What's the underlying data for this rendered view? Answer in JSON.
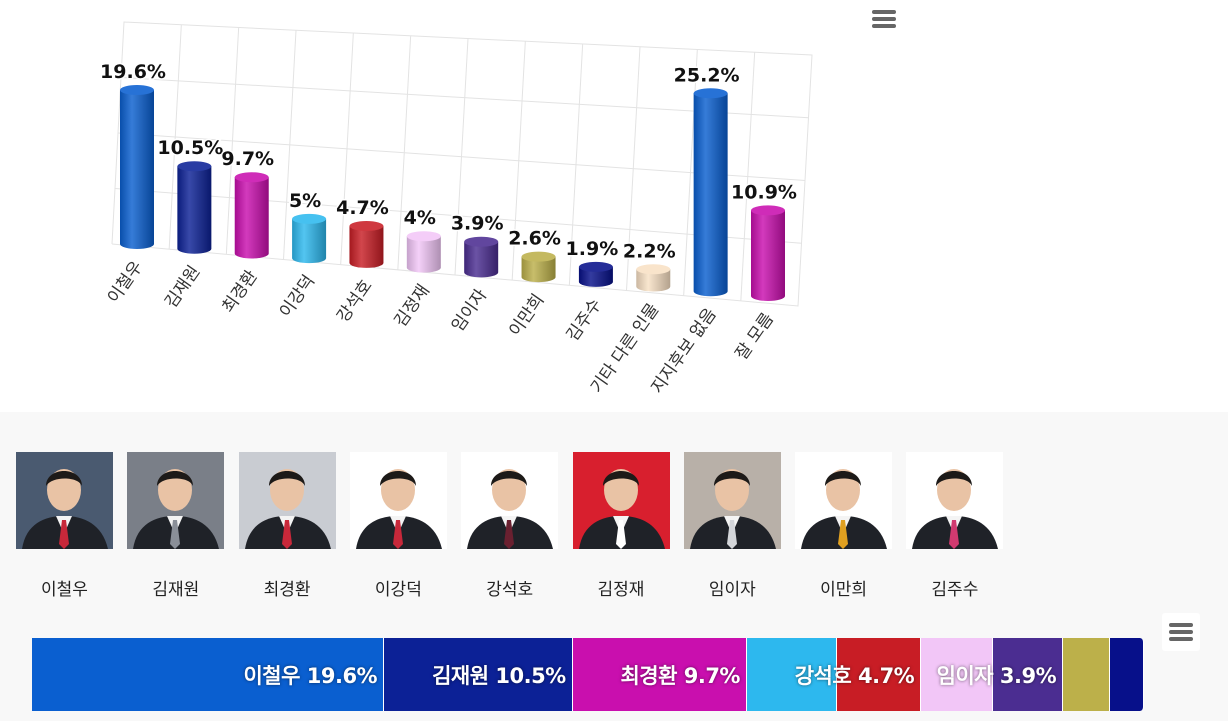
{
  "chart_data": [
    {
      "type": "bar",
      "style": "3d-cylinder",
      "categories": [
        "이철우",
        "김재원",
        "최경환",
        "이강덕",
        "강석호",
        "김정재",
        "임이자",
        "이만희",
        "김주수",
        "기타 다른 인물",
        "지지후보 없음",
        "잘 모름"
      ],
      "values": [
        19.6,
        10.5,
        9.7,
        5,
        4.7,
        4,
        3.9,
        2.6,
        1.9,
        2.2,
        25.2,
        10.9
      ],
      "data_labels": [
        "19.6%",
        "10.5%",
        "9.7%",
        "5%",
        "4.7%",
        "4%",
        "3.9%",
        "2.6%",
        "1.9%",
        "2.2%",
        "25.2%",
        "10.9%"
      ],
      "colors": [
        "#0a5fd0",
        "#0c2196",
        "#c90fae",
        "#2db8ee",
        "#c81d25",
        "#f2c6f7",
        "#4b2d91",
        "#bcb04a",
        "#07108a",
        "#f8e0c4",
        "#0a5fd0",
        "#c90fae"
      ],
      "grid": true,
      "legend": "none"
    },
    {
      "type": "bar",
      "style": "stacked-horizontal",
      "categories": [
        "이철우",
        "김재원",
        "최경환",
        "이강덕",
        "강석호",
        "김정재",
        "임이자",
        "이만희",
        "김주수"
      ],
      "values": [
        19.6,
        10.5,
        9.7,
        5,
        4.7,
        4,
        3.9,
        2.6,
        1.9
      ],
      "segment_labels": [
        "이철우 19.6%",
        "김재원 10.5%",
        "최경환 9.7%",
        "",
        "강석호 4.7%",
        "",
        "임이자 3.9%",
        "",
        ""
      ],
      "colors": [
        "#0a5fd0",
        "#0c2196",
        "#c90fae",
        "#2db8ee",
        "#c81d25",
        "#f2c6f7",
        "#4b2d91",
        "#bcb04a",
        "#07108a"
      ]
    }
  ],
  "candidates": [
    {
      "name": "이철우",
      "tie": "#c8283a",
      "bg": "#4a5a70"
    },
    {
      "name": "김재원",
      "tie": "#8a8f98",
      "bg": "#7a7f88"
    },
    {
      "name": "최경환",
      "tie": "#c8283a",
      "bg": "#c9ccd2"
    },
    {
      "name": "이강덕",
      "tie": "#c8283a",
      "bg": "#ffffff"
    },
    {
      "name": "강석호",
      "tie": "#6a2030",
      "bg": "#ffffff"
    },
    {
      "name": "김정재",
      "tie": "#ffffff",
      "bg": "#d81f2e"
    },
    {
      "name": "임이자",
      "tie": "#d4d6da",
      "bg": "#b8b0a8"
    },
    {
      "name": "이만희",
      "tie": "#e0a020",
      "bg": "#ffffff"
    },
    {
      "name": "김주수",
      "tie": "#d23a70",
      "bg": "#ffffff"
    }
  ],
  "icons": {
    "menu_top": "hamburger-menu-icon",
    "menu_bottom": "hamburger-menu-icon"
  }
}
